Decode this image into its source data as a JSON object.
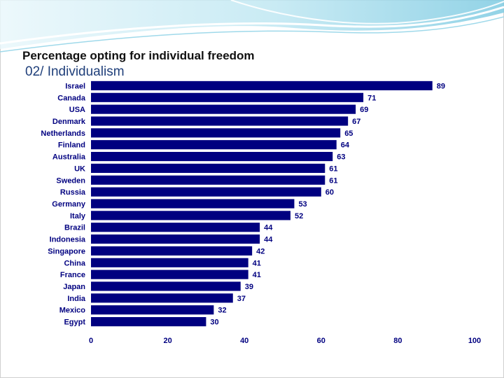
{
  "slide": {
    "title": "Percentage opting for individual freedom",
    "subtitle": "02/ Individualism"
  },
  "colors": {
    "bar": "#000080",
    "banner_light": "#cfeef6",
    "banner_mid": "#8fd3e6",
    "subtitle": "#1f3f7a"
  },
  "chart_data": {
    "type": "bar",
    "orientation": "horizontal",
    "categories": [
      "Israel",
      "Canada",
      "USA",
      "Denmark",
      "Netherlands",
      "Finland",
      "Australia",
      "UK",
      "Sweden",
      "Russia",
      "Germany",
      "Italy",
      "Brazil",
      "Indonesia",
      "Singapore",
      "China",
      "France",
      "Japan",
      "India",
      "Mexico",
      "Egypt"
    ],
    "values": [
      89,
      71,
      69,
      67,
      65,
      64,
      63,
      61,
      61,
      60,
      53,
      52,
      44,
      44,
      42,
      41,
      41,
      39,
      37,
      32,
      30
    ],
    "title": "Percentage opting for individual freedom",
    "xlabel": "",
    "ylabel": "",
    "xlim": [
      0,
      100
    ],
    "xticks": [
      0,
      20,
      40,
      60,
      80,
      100
    ],
    "grid": false,
    "legend": "none",
    "data_labels": true
  }
}
